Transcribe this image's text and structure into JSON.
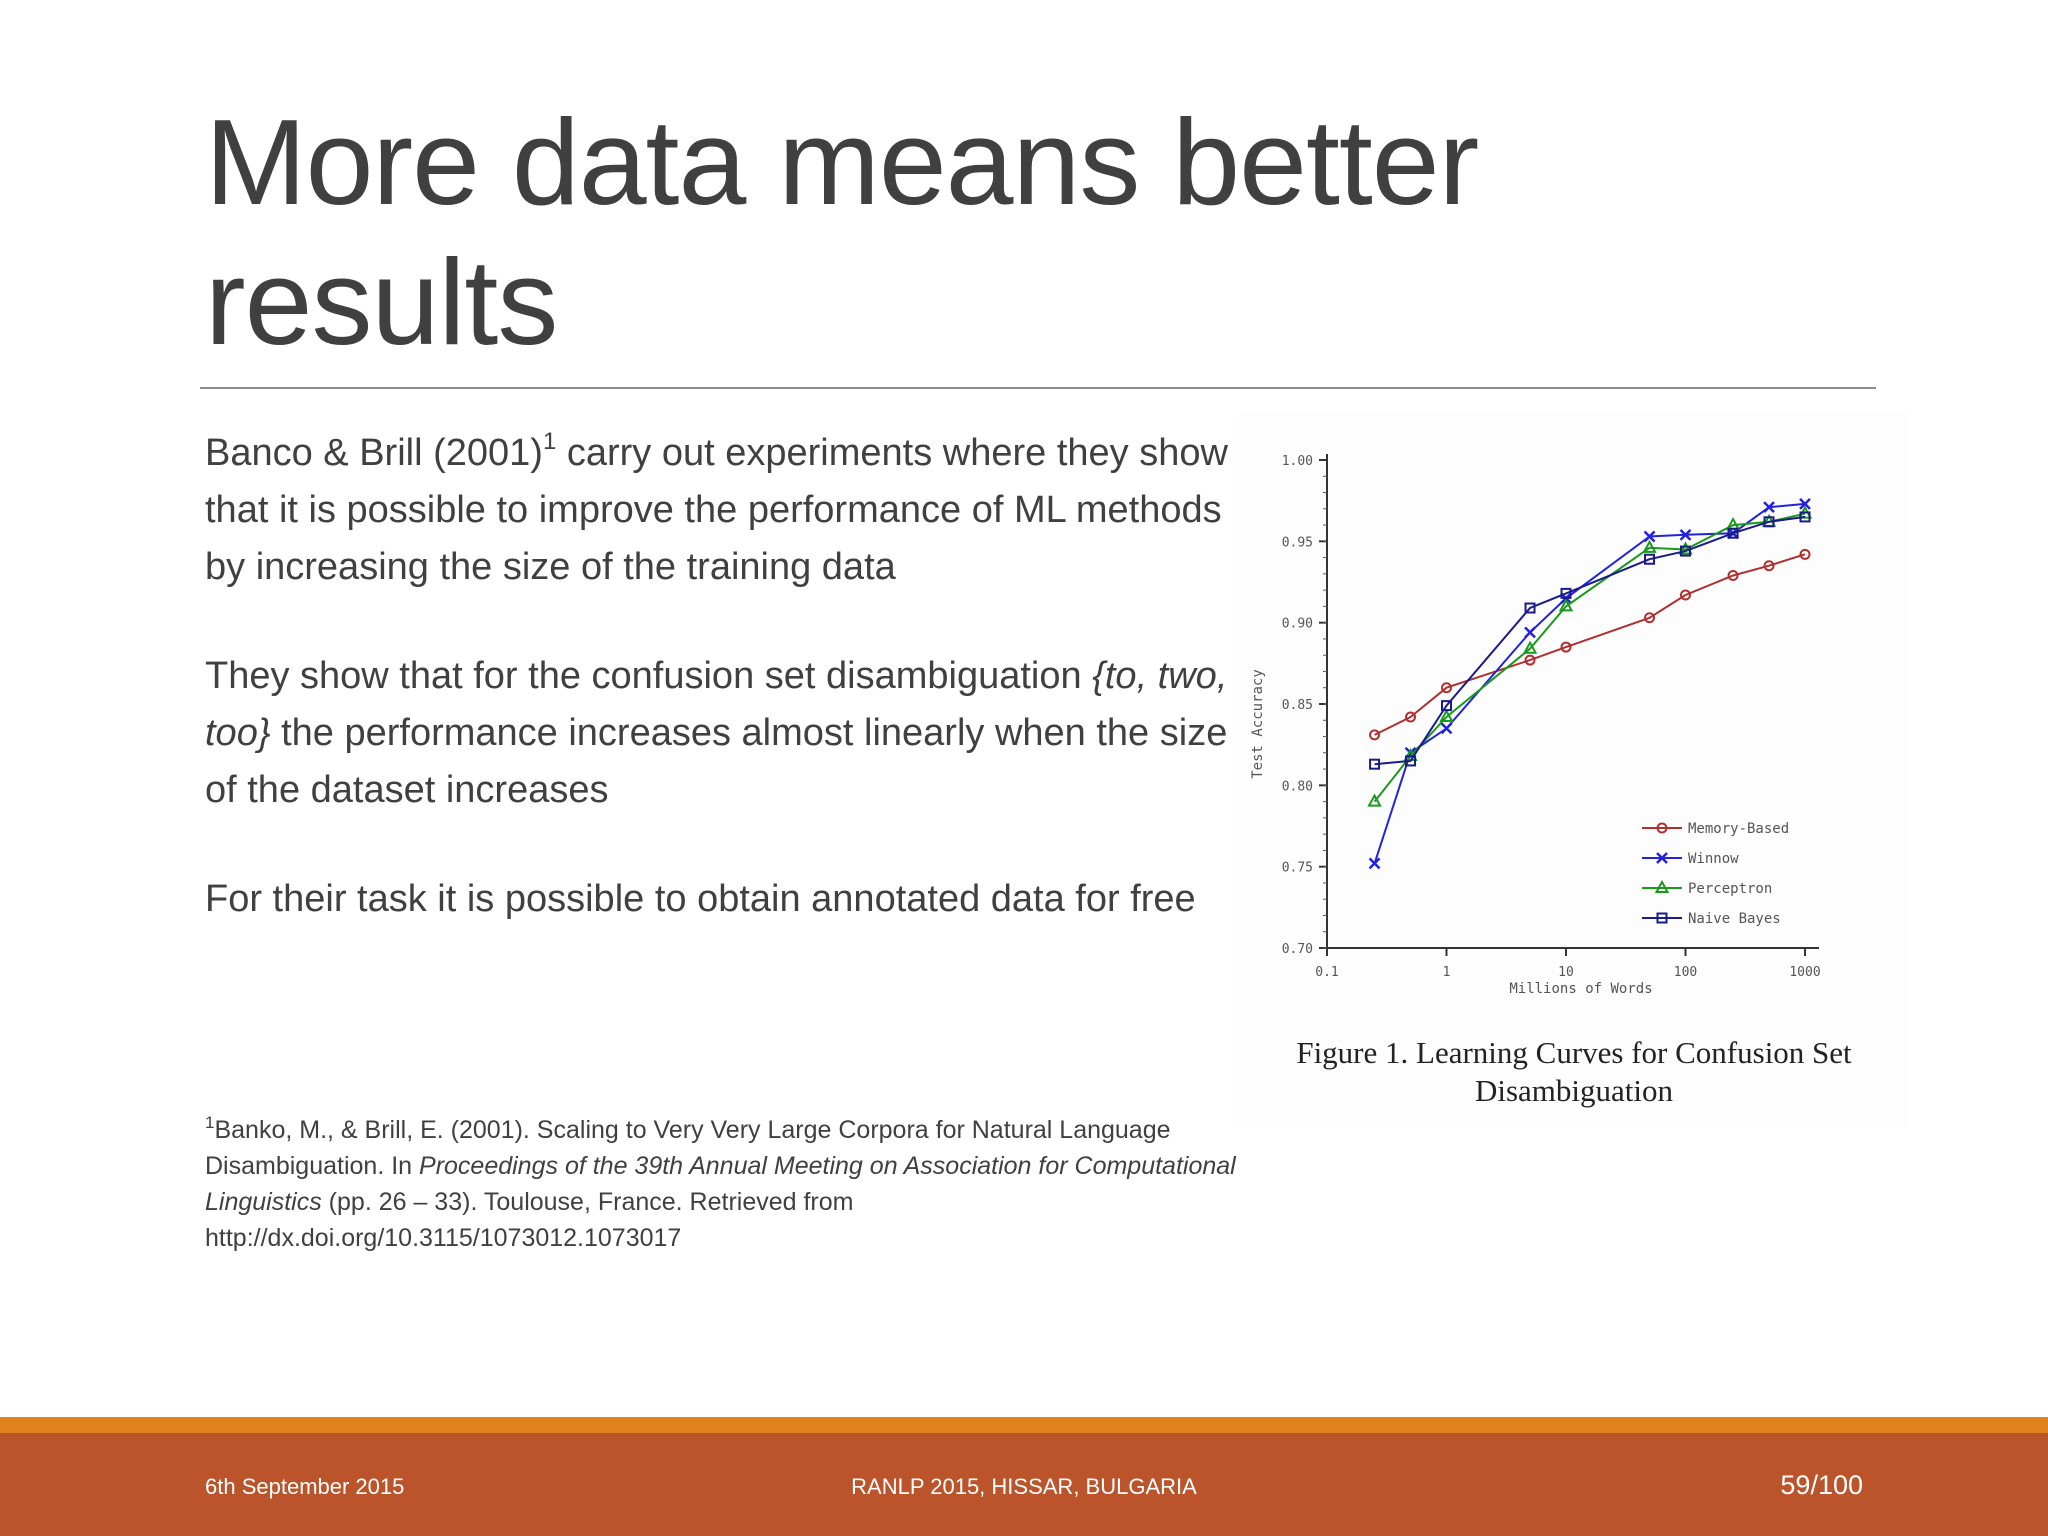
{
  "slide": {
    "title": "More data means better results",
    "paragraph1_pre": "Banco & Brill (2001)",
    "paragraph1_sup": "1",
    "paragraph1_post": " carry out experiments where they show that it is possible to improve the performance of ML methods by increasing the size of the training data",
    "paragraph2_pre": "They show that for the confusion set disambiguation ",
    "paragraph2_em": "{to, two, too}",
    "paragraph2_post": " the performance increases almost linearly when the size of the dataset increases",
    "paragraph3": "For their task it is possible to obtain annotated data for free"
  },
  "footnote": {
    "sup": "1",
    "part1": "Banko, M., & Brill, E. (2001). Scaling to Very Very Large Corpora for Natural Language Disambiguation. In ",
    "em": "Proceedings of the 39th Annual Meeting on Association for Computational Linguistics",
    "part2": " (pp. 26 – 33). Toulouse, France. Retrieved from http://dx.doi.org/10.3115/1073012.1073017"
  },
  "figure": {
    "caption_line1": "Figure 1. Learning Curves for Confusion Set",
    "caption_line2": "Disambiguation"
  },
  "chart_data": {
    "type": "line",
    "xlabel": "Millions of Words",
    "ylabel": "Test Accuracy",
    "xscale": "log",
    "xlim": [
      0.1,
      1000
    ],
    "ylim": [
      0.7,
      1.0
    ],
    "xticks": [
      0.1,
      1,
      10,
      100,
      1000
    ],
    "xtick_labels": [
      "0.1",
      "1",
      "10",
      "100",
      "1000"
    ],
    "yticks": [
      0.7,
      0.75,
      0.8,
      0.85,
      0.9,
      0.95,
      1.0
    ],
    "ytick_labels": [
      "0.70",
      "0.75",
      "0.80",
      "0.85",
      "0.90",
      "0.95",
      "1.00"
    ],
    "legend_position": "bottom-right",
    "x": [
      0.25,
      0.5,
      1,
      5,
      10,
      50,
      100,
      250,
      500,
      1000
    ],
    "series": [
      {
        "name": "Memory-Based",
        "color": "#b03030",
        "marker": "circle",
        "values": [
          0.831,
          0.842,
          0.86,
          0.877,
          0.885,
          0.903,
          0.917,
          0.929,
          0.935,
          0.942
        ]
      },
      {
        "name": "Winnow",
        "color": "#2222dd",
        "marker": "x",
        "values": [
          0.752,
          0.82,
          0.835,
          0.894,
          0.915,
          0.953,
          0.954,
          0.955,
          0.971,
          0.973
        ]
      },
      {
        "name": "Perceptron",
        "color": "#1a9a1a",
        "marker": "triangle",
        "values": [
          0.79,
          0.818,
          0.842,
          0.884,
          0.91,
          0.946,
          0.945,
          0.96,
          0.962,
          0.967
        ]
      },
      {
        "name": "Naive Bayes",
        "color": "#1a1a8a",
        "marker": "square",
        "values": [
          0.813,
          0.815,
          0.849,
          0.909,
          0.918,
          0.939,
          0.944,
          0.955,
          0.962,
          0.965
        ]
      }
    ]
  },
  "footer": {
    "date": "6th September 2015",
    "conference": "RANLP 2015, HISSAR, BULGARIA",
    "page": "59/100"
  }
}
